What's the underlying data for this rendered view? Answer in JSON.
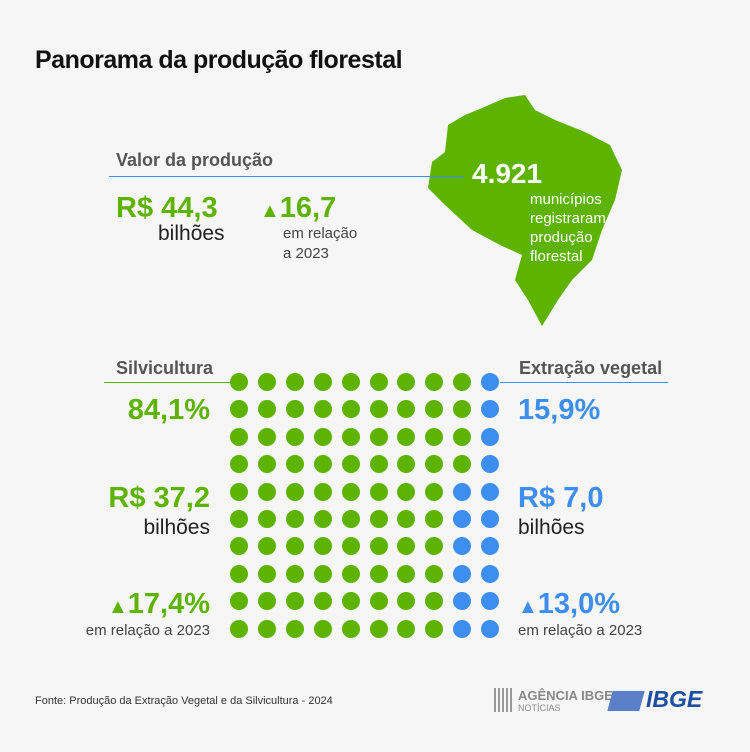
{
  "title": "Panorama da produção florestal",
  "valor": {
    "label": "Valor da produção",
    "value": "R$ 44,3",
    "unit": "bilhões",
    "change": "16,7",
    "change_note_1": "em relação",
    "change_note_2": "a 2023"
  },
  "map": {
    "number": "4.921",
    "lines": [
      "municípios",
      "registraram",
      "produção",
      "florestal"
    ]
  },
  "silvicultura": {
    "label": "Silvicultura",
    "percent": "84,1%",
    "value": "R$ 37,2",
    "unit": "bilhões",
    "change": "17,4%",
    "note": "em relação a 2023"
  },
  "extracao": {
    "label": "Extração vegetal",
    "percent": "15,9%",
    "value": "R$ 7,0",
    "unit": "bilhões",
    "change": "13,0%",
    "note": "em relação a 2023"
  },
  "waffle": {
    "total_dots": 100,
    "silvicultura_dots": 84,
    "extracao_dots": 16
  },
  "colors": {
    "green": "#5db300",
    "blue": "#3d8ef0",
    "ibge_blue": "#1e4fa0"
  },
  "footer": {
    "source": "Fonte: Produção da Extração Vegetal e da Silvicultura - 2024",
    "agencia": "AGÊNCIA IBGE",
    "noticias": "NOTÍCIAS",
    "ibge": "IBGE"
  }
}
